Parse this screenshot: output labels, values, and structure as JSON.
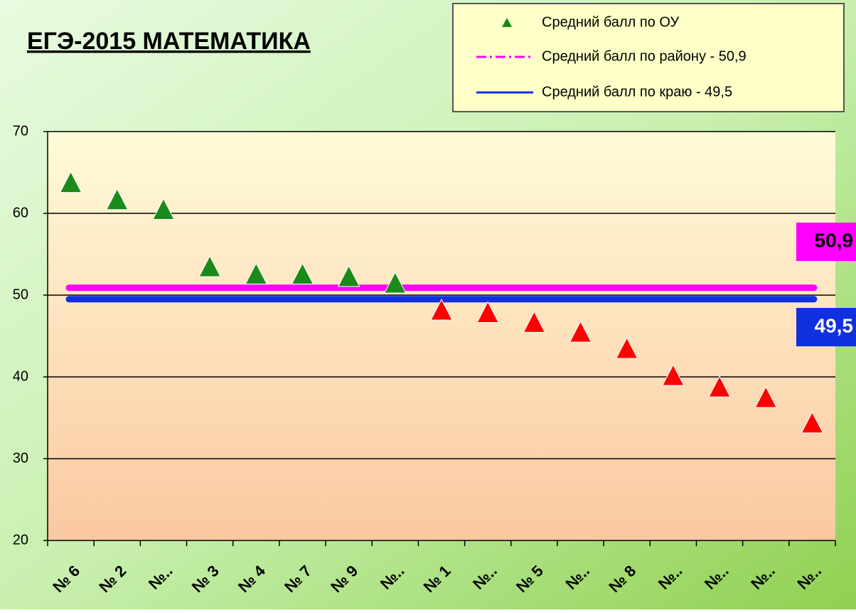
{
  "chart_data": {
    "type": "scatter",
    "title": "ЕГЭ-2015 МАТЕМАТИКА",
    "categories": [
      "№ 6",
      "№ 2",
      "№..",
      "№ 3",
      "№ 4",
      "№ 7",
      "№ 9",
      "№..",
      "№ 1",
      "№..",
      "№ 5",
      "№..",
      "№ 8",
      "№..",
      "№..",
      "№..",
      "№.."
    ],
    "series": [
      {
        "name": "Средний балл по ОУ",
        "color": "#1a8a1a",
        "values": [
          63.6,
          61.5,
          60.3,
          53.3,
          52.4,
          52.4,
          52.1,
          51.3,
          48.0,
          47.7,
          46.5,
          45.3,
          43.3,
          40.0,
          38.6,
          37.3,
          34.2
        ],
        "point_colors": [
          "#1a8a1a",
          "#1a8a1a",
          "#1a8a1a",
          "#1a8a1a",
          "#1a8a1a",
          "#1a8a1a",
          "#1a8a1a",
          "#1a8a1a",
          "#ff0000",
          "#ff0000",
          "#ff0000",
          "#ff0000",
          "#ff0000",
          "#ff0000",
          "#ff0000",
          "#ff0000",
          "#ff0000"
        ]
      }
    ],
    "reference_lines": [
      {
        "name": "Средний балл по району - 50,9",
        "value": 50.9,
        "value_label": "50,9",
        "color": "#ff00ff"
      },
      {
        "name": "Средний балл по краю - 49,5",
        "value": 49.5,
        "value_label": "49,5",
        "color": "#1030e0"
      }
    ],
    "ylim": [
      20,
      70
    ],
    "yticks": [
      20,
      30,
      40,
      50,
      60,
      70
    ],
    "grid": true
  }
}
